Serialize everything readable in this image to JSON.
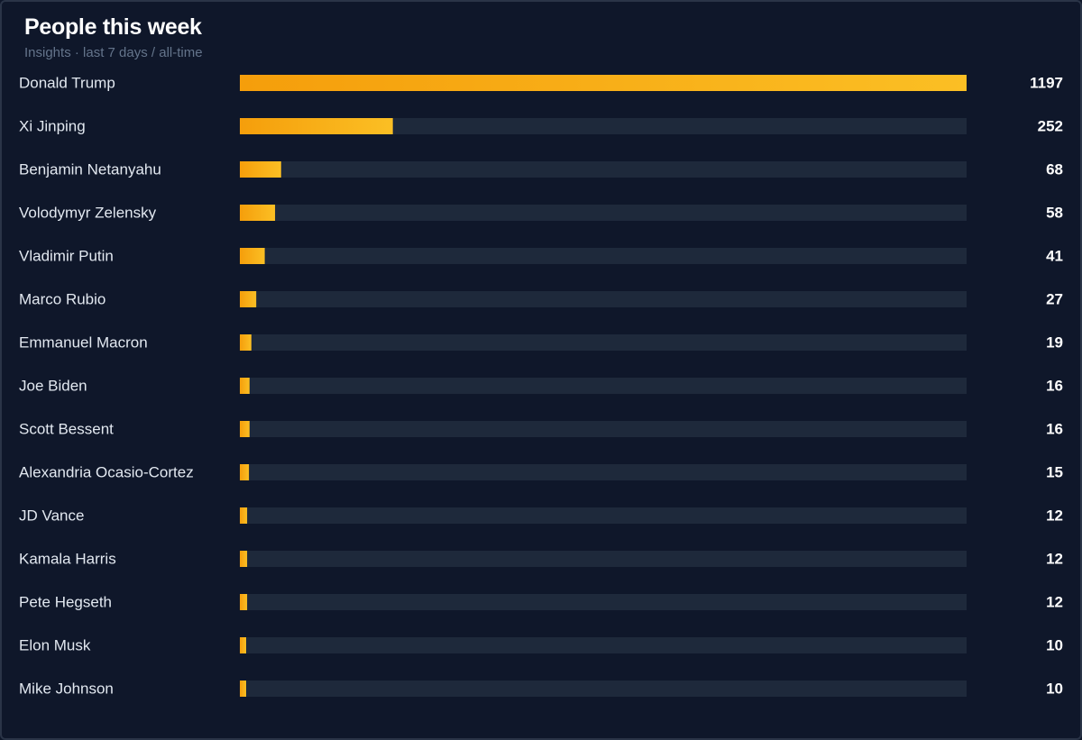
{
  "header": {
    "title": "People this week",
    "subtitle": "Insights · last 7 days / all-time"
  },
  "colors": {
    "background": "#0f172a",
    "track": "#1e293b",
    "bar_start": "#f59e0b",
    "bar_end": "#fbbf24",
    "label": "#e2e8f0",
    "value": "#ffffff"
  },
  "chart_data": {
    "type": "bar",
    "orientation": "horizontal",
    "categories": [
      "Donald Trump",
      "Xi Jinping",
      "Benjamin Netanyahu",
      "Volodymyr Zelensky",
      "Vladimir Putin",
      "Marco Rubio",
      "Emmanuel Macron",
      "Joe Biden",
      "Scott Bessent",
      "Alexandria Ocasio-Cortez",
      "JD Vance",
      "Kamala Harris",
      "Pete Hegseth",
      "Elon Musk",
      "Mike Johnson"
    ],
    "values": [
      1197,
      252,
      68,
      58,
      41,
      27,
      19,
      16,
      16,
      15,
      12,
      12,
      12,
      10,
      10
    ],
    "xlim": [
      0,
      1197
    ],
    "grid": false,
    "legend": "none",
    "value_labels": true
  }
}
